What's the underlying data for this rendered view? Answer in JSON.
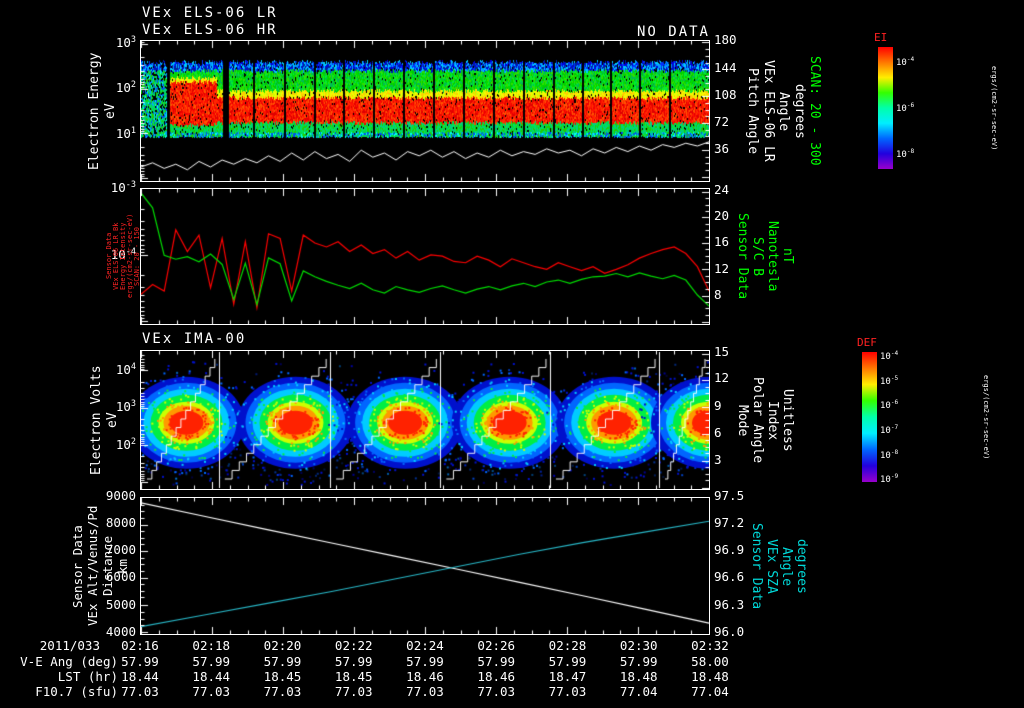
{
  "colors": {
    "background": "#000000",
    "white": "#ffffff",
    "green": "#00ff00",
    "red": "#ff2222",
    "red_line": "#ff0000",
    "green_line": "#00dd00",
    "cyan": "#00d8d8",
    "cyan_line": "#28b8c8"
  },
  "header": {
    "title_line1": "VEx ELS-06 LR",
    "title_line2": "VEx ELS-06 HR",
    "no_data": "NO DATA"
  },
  "panels": {
    "p1": {
      "left_label_lines": [
        {
          "text": "Electron Energy",
          "color": "white"
        },
        {
          "text": "eV",
          "color": "white"
        }
      ],
      "right_label_lines": [
        {
          "text": "Pitch Angle",
          "color": "white"
        },
        {
          "text": "VEx ELS-06 LR",
          "color": "white"
        },
        {
          "text": "Angle",
          "color": "white"
        },
        {
          "text": "degrees",
          "color": "white"
        },
        {
          "text": "SCAN: 20 - 300",
          "color": "green"
        }
      ],
      "left_ticks": [
        {
          "f": 0.02,
          "label": "10^3"
        },
        {
          "f": 0.34,
          "label": "10^2"
        },
        {
          "f": 0.66,
          "label": "10^1"
        }
      ],
      "right_ticks": [
        {
          "f": 0.01,
          "label": "180"
        },
        {
          "f": 0.202,
          "label": "144"
        },
        {
          "f": 0.394,
          "label": "108"
        },
        {
          "f": 0.586,
          "label": "72"
        },
        {
          "f": 0.778,
          "label": "36"
        }
      ],
      "axes": {
        "yl": {
          "scale": "log",
          "majors": [
            0.02,
            0.34,
            0.66,
            0.98
          ]
        },
        "yr": {
          "scale": "linear",
          "majors": [
            0.01,
            0.202,
            0.394,
            0.586,
            0.778,
            0.97
          ],
          "mdiv": 4
        }
      }
    },
    "p2": {
      "left_label_lines": [
        {
          "text": "Sensor Data",
          "color": "red"
        },
        {
          "text": "VEx ELS-06 LR Bk",
          "color": "red"
        },
        {
          "text": "Energy Intensity",
          "color": "red"
        },
        {
          "text": "ergs/(cm2-sr-sec-eV)",
          "color": "red"
        },
        {
          "text": "SCAN: 20 - 150",
          "color": "red"
        }
      ],
      "right_label_lines": [
        {
          "text": "Sensor Data",
          "color": "green"
        },
        {
          "text": "S/C B",
          "color": "green"
        },
        {
          "text": "Nanotesla",
          "color": "green"
        },
        {
          "text": "nT",
          "color": "green"
        }
      ],
      "left_ticks": [
        {
          "f": 0.0,
          "label": "10^-3"
        },
        {
          "f": 0.49,
          "label": "10^-4"
        }
      ],
      "right_ticks": [
        {
          "f": 0.02,
          "label": "24"
        },
        {
          "f": 0.21,
          "label": "20"
        },
        {
          "f": 0.4,
          "label": "16"
        },
        {
          "f": 0.595,
          "label": "12"
        },
        {
          "f": 0.79,
          "label": "8"
        }
      ],
      "axes": {
        "yl": {
          "scale": "log",
          "majors": [
            0.0,
            0.49,
            0.98
          ]
        },
        "yr": {
          "scale": "linear",
          "majors": [
            0.02,
            0.21,
            0.4,
            0.595,
            0.79,
            0.985
          ],
          "mdiv": 4
        }
      }
    },
    "p3": {
      "title": "VEx IMA-00",
      "left_label_lines": [
        {
          "text": "Electron Volts",
          "color": "white"
        },
        {
          "text": "eV",
          "color": "white"
        }
      ],
      "right_label_lines": [
        {
          "text": "Mode",
          "color": "white"
        },
        {
          "text": "Polar Angle",
          "color": "white"
        },
        {
          "text": "Index",
          "color": "white"
        },
        {
          "text": "Unitless",
          "color": "white"
        }
      ],
      "left_ticks": [
        {
          "f": 0.14,
          "label": "10^4"
        },
        {
          "f": 0.41,
          "label": "10^3"
        },
        {
          "f": 0.68,
          "label": "10^2"
        }
      ],
      "right_ticks": [
        {
          "f": 0.02,
          "label": "15"
        },
        {
          "f": 0.21,
          "label": "12"
        },
        {
          "f": 0.405,
          "label": "9"
        },
        {
          "f": 0.6,
          "label": "6"
        },
        {
          "f": 0.795,
          "label": "3"
        }
      ],
      "axes": {
        "yl": {
          "scale": "log",
          "majors": [
            0.14,
            0.41,
            0.68,
            0.95
          ]
        },
        "yr": {
          "scale": "linear",
          "majors": [
            0.02,
            0.21,
            0.405,
            0.6,
            0.795,
            0.99
          ],
          "mdiv": 4
        }
      }
    },
    "p4": {
      "left_label_lines": [
        {
          "text": "Sensor Data",
          "color": "white"
        },
        {
          "text": "VEx Alt/Venus/Pd",
          "color": "white"
        },
        {
          "text": "Distance",
          "color": "white"
        },
        {
          "text": "km",
          "color": "white"
        }
      ],
      "right_label_lines": [
        {
          "text": "Sensor Data",
          "color": "cyan"
        },
        {
          "text": "VEx SZA",
          "color": "cyan"
        },
        {
          "text": "Angle",
          "color": "cyan"
        },
        {
          "text": "degrees",
          "color": "cyan"
        }
      ],
      "left_ticks": [
        {
          "f": 0.0,
          "label": "9000"
        },
        {
          "f": 0.195,
          "label": "8000"
        },
        {
          "f": 0.39,
          "label": "7000"
        },
        {
          "f": 0.585,
          "label": "6000"
        },
        {
          "f": 0.79,
          "label": "5000"
        },
        {
          "f": 0.985,
          "label": "4000"
        }
      ],
      "right_ticks": [
        {
          "f": 0.0,
          "label": "97.5"
        },
        {
          "f": 0.195,
          "label": "97.2"
        },
        {
          "f": 0.39,
          "label": "96.9"
        },
        {
          "f": 0.585,
          "label": "96.6"
        },
        {
          "f": 0.79,
          "label": "96.3"
        },
        {
          "f": 0.985,
          "label": "96.0"
        }
      ],
      "axes": {
        "yl": {
          "scale": "linear",
          "majors": [
            0.0,
            0.195,
            0.39,
            0.585,
            0.79,
            0.985
          ],
          "mdiv": 4
        }
      }
    }
  },
  "colorbars": {
    "gradient": [
      "#ff0000",
      "#ff7700",
      "#ffee00",
      "#33ff00",
      "#00ffaa",
      "#00eeff",
      "#0066ff",
      "#2200dd",
      "#9900cc"
    ],
    "cb1": {
      "title": "EI",
      "unit": "ergs/(cm2-sr-sec-eV)",
      "ticks": [
        {
          "f": 0.12,
          "label": "10^-4"
        },
        {
          "f": 0.5,
          "label": "10^-6"
        },
        {
          "f": 0.88,
          "label": "10^-8"
        }
      ]
    },
    "cb2": {
      "title": "DEF",
      "unit": "ergs/(cm2-sr-sec-eV)",
      "ticks": [
        {
          "f": 0.03,
          "label": "10^-4"
        },
        {
          "f": 0.22,
          "label": "10^-5"
        },
        {
          "f": 0.41,
          "label": "10^-6"
        },
        {
          "f": 0.6,
          "label": "10^-7"
        },
        {
          "f": 0.79,
          "label": "10^-8"
        },
        {
          "f": 0.98,
          "label": "10^-9"
        }
      ]
    }
  },
  "chart_data": [
    {
      "id": "els_spectrogram",
      "type": "heatmap",
      "title": "VEx ELS-06 LR / VEx ELS-06 HR electron energy-time spectrogram (HR: NO DATA)",
      "x_range": [
        "02:16",
        "02:32"
      ],
      "ylabel_left": "Electron Energy eV",
      "y_left_log_ticks": [
        1000,
        100,
        10
      ],
      "ylabel_right": "Pitch Angle VEx ELS-06 LR Angle degrees SCAN: 20 - 300",
      "y_right_ticks": [
        180,
        144,
        108,
        72,
        36
      ],
      "colorbar": {
        "label": "EI",
        "unit": "ergs/(cm2-sr-sec-eV)",
        "range_log10": [
          -8,
          -4
        ]
      },
      "bands_top_to_bottom": [
        {
          "approx_energy": "300-1000 eV",
          "color": "blue"
        },
        {
          "approx_energy": "60-300 eV",
          "color": "green"
        },
        {
          "approx_energy": "30-60 eV",
          "color": "yellow"
        },
        {
          "approx_energy": "8-30 eV",
          "color": "red peak flux"
        },
        {
          "approx_energy": "1-8 eV",
          "color": "green-cyan"
        }
      ],
      "intense_blob_xfrac": [
        0.049,
        0.133
      ],
      "gaps": [
        {
          "f": 0.045,
          "w": 3
        },
        {
          "f": 0.144,
          "w": 6
        },
        {
          "f": 0.198,
          "w": 2
        },
        {
          "f": 0.251,
          "w": 2
        },
        {
          "f": 0.304,
          "w": 2
        },
        {
          "f": 0.356,
          "w": 2
        },
        {
          "f": 0.409,
          "w": 2
        },
        {
          "f": 0.461,
          "w": 2
        },
        {
          "f": 0.514,
          "w": 2
        },
        {
          "f": 0.567,
          "w": 2
        },
        {
          "f": 0.619,
          "w": 2
        },
        {
          "f": 0.672,
          "w": 2
        },
        {
          "f": 0.725,
          "w": 2
        },
        {
          "f": 0.777,
          "w": 2
        },
        {
          "f": 0.825,
          "w": 2
        },
        {
          "f": 0.877,
          "w": 2
        },
        {
          "f": 0.93,
          "w": 2
        }
      ],
      "trace_yfracs": [
        0.9,
        0.87,
        0.91,
        0.88,
        0.92,
        0.86,
        0.9,
        0.85,
        0.88,
        0.84,
        0.87,
        0.82,
        0.86,
        0.8,
        0.85,
        0.79,
        0.84,
        0.81,
        0.86,
        0.78,
        0.83,
        0.8,
        0.85,
        0.79,
        0.82,
        0.78,
        0.83,
        0.79,
        0.84,
        0.8,
        0.83,
        0.78,
        0.82,
        0.79,
        0.81,
        0.77,
        0.8,
        0.78,
        0.82,
        0.77,
        0.8,
        0.76,
        0.79,
        0.75,
        0.78,
        0.74,
        0.76,
        0.73,
        0.75,
        0.72
      ]
    },
    {
      "id": "intensity_bfield",
      "type": "line",
      "ylabel_left": "VEx ELS-06 LR Bk Energy Intensity ergs/(cm2-sr-sec-eV), log scale",
      "ylabel_right": "S/C B Nanotesla nT",
      "series": [
        {
          "name": "ELS energy intensity (log10)",
          "color": "#ff0000",
          "range": [
            -5.05,
            -3.0
          ],
          "values": [
            -4.6,
            -4.45,
            -4.55,
            -3.62,
            -3.95,
            -3.7,
            -4.5,
            -3.75,
            -4.75,
            -3.8,
            -4.8,
            -3.68,
            -3.75,
            -4.55,
            -3.7,
            -3.82,
            -3.88,
            -3.8,
            -3.95,
            -3.85,
            -3.98,
            -3.92,
            -4.05,
            -3.95,
            -4.08,
            -4.0,
            -4.02,
            -4.1,
            -4.12,
            -4.02,
            -4.08,
            -4.18,
            -4.06,
            -4.12,
            -4.18,
            -4.22,
            -4.12,
            -4.18,
            -4.24,
            -4.18,
            -4.28,
            -4.22,
            -4.15,
            -4.05,
            -3.98,
            -3.92,
            -3.88,
            -3.98,
            -4.18,
            -4.55
          ]
        },
        {
          "name": "S/C B (nT)",
          "color": "#00dd00",
          "range": [
            3.64,
            24.4
          ],
          "values": [
            23.8,
            21.5,
            14.2,
            13.6,
            14.0,
            13.2,
            14.4,
            12.8,
            7.4,
            13.0,
            6.6,
            13.8,
            12.9,
            7.2,
            11.8,
            10.9,
            10.2,
            9.6,
            9.1,
            9.9,
            8.9,
            8.4,
            9.4,
            8.9,
            8.5,
            9.1,
            9.5,
            8.9,
            8.4,
            9.0,
            9.4,
            8.9,
            9.5,
            9.9,
            9.4,
            10.1,
            10.4,
            9.9,
            10.5,
            10.9,
            11.0,
            11.4,
            10.9,
            11.5,
            11.0,
            10.6,
            11.1,
            10.4,
            8.1,
            6.4
          ]
        }
      ]
    },
    {
      "id": "ima_spectrogram",
      "type": "heatmap",
      "title": "VEx IMA-00 ion energy-time spectrogram",
      "ylabel_left": "Electron Volts eV",
      "y_left_log_ticks": [
        10000,
        1000,
        100
      ],
      "ylabel_right": "Mode Polar Angle Index Unitless",
      "y_right_ticks": [
        15,
        12,
        9,
        6,
        3
      ],
      "colorbar": {
        "label": "DEF",
        "unit": "ergs/(cm2-sr-sec-eV)",
        "range_log10": [
          -9,
          -4
        ]
      },
      "blob_centers_frac": [
        0.08,
        0.272,
        0.465,
        0.649,
        0.833,
        1.0
      ],
      "blob_center_energy": "~300-700 eV (red core)",
      "sweep_boundaries_frac": [
        0.137,
        0.333,
        0.527,
        0.72,
        0.912
      ]
    },
    {
      "id": "alt_sza",
      "type": "line",
      "ylabel_left": "Sensor Data VEx Alt/Venus/Pd Distance km",
      "ylim_left": [
        4000,
        9000
      ],
      "ylabel_right": "Sensor Data VEx SZA Angle degrees",
      "ylim_right": [
        96.0,
        97.5
      ],
      "series": [
        {
          "name": "VEx Alt/Venus/Pd Distance (km)",
          "color": "#ffffff",
          "range": [
            3923,
            9000
          ],
          "values": [
            8820,
            8320,
            7820,
            7330,
            6840,
            6350,
            5850,
            5350,
            4840,
            4330
          ]
        },
        {
          "name": "VEx SZA (degrees)",
          "color": "#28b8c8",
          "range": [
            95.977,
            97.5
          ],
          "values": [
            96.06,
            96.19,
            96.32,
            96.45,
            96.59,
            96.73,
            96.87,
            97.0,
            97.12,
            97.24
          ]
        }
      ]
    }
  ],
  "time_axis": {
    "date": "2011/033",
    "ticks": [
      "02:16",
      "02:18",
      "02:20",
      "02:22",
      "02:24",
      "02:26",
      "02:28",
      "02:30",
      "02:32"
    ]
  },
  "table": {
    "rows": [
      {
        "label": "V-E Ang (deg)",
        "values": [
          "57.99",
          "57.99",
          "57.99",
          "57.99",
          "57.99",
          "57.99",
          "57.99",
          "57.99",
          "58.00"
        ]
      },
      {
        "label": "LST (hr)",
        "values": [
          "18.44",
          "18.44",
          "18.45",
          "18.45",
          "18.46",
          "18.46",
          "18.47",
          "18.48",
          "18.48"
        ]
      },
      {
        "label": "F10.7 (sfu)",
        "values": [
          "77.03",
          "77.03",
          "77.03",
          "77.03",
          "77.03",
          "77.03",
          "77.03",
          "77.04",
          "77.04"
        ]
      }
    ]
  }
}
